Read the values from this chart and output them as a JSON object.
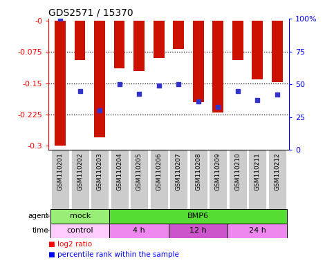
{
  "title": "GDS2571 / 15370",
  "samples": [
    "GSM110201",
    "GSM110202",
    "GSM110203",
    "GSM110204",
    "GSM110205",
    "GSM110206",
    "GSM110207",
    "GSM110208",
    "GSM110209",
    "GSM110210",
    "GSM110211",
    "GSM110212"
  ],
  "log2_ratio": [
    -0.3,
    -0.095,
    -0.28,
    -0.115,
    -0.12,
    -0.09,
    -0.068,
    -0.195,
    -0.22,
    -0.095,
    -0.14,
    -0.148
  ],
  "percentile": [
    100,
    45,
    30,
    50,
    43,
    49,
    50,
    37,
    33,
    45,
    38,
    42
  ],
  "ylim_left": [
    -0.31,
    0.005
  ],
  "ylim_right": [
    -0.775,
    100
  ],
  "yticks_left": [
    -0.3,
    -0.225,
    -0.15,
    -0.075,
    0.0
  ],
  "ytick_labels_left": [
    "-0.3",
    "-0.225",
    "-0.15",
    "-0.075",
    "-0"
  ],
  "yticks_right": [
    0,
    25,
    50,
    75,
    100
  ],
  "ytick_labels_right": [
    "0",
    "25",
    "50",
    "75",
    "100%"
  ],
  "bar_color": "#CC1100",
  "dot_color": "#3333CC",
  "agent_row": [
    {
      "label": "mock",
      "start": 0,
      "end": 3,
      "color": "#99EE77"
    },
    {
      "label": "BMP6",
      "start": 3,
      "end": 12,
      "color": "#55DD33"
    }
  ],
  "time_row": [
    {
      "label": "control",
      "start": 0,
      "end": 3,
      "color": "#FFCCFF"
    },
    {
      "label": "4 h",
      "start": 3,
      "end": 6,
      "color": "#EE88EE"
    },
    {
      "label": "12 h",
      "start": 6,
      "end": 9,
      "color": "#CC55CC"
    },
    {
      "label": "24 h",
      "start": 9,
      "end": 12,
      "color": "#EE88EE"
    }
  ],
  "legend_red_label": "log2 ratio",
  "legend_blue_label": "percentile rank within the sample"
}
